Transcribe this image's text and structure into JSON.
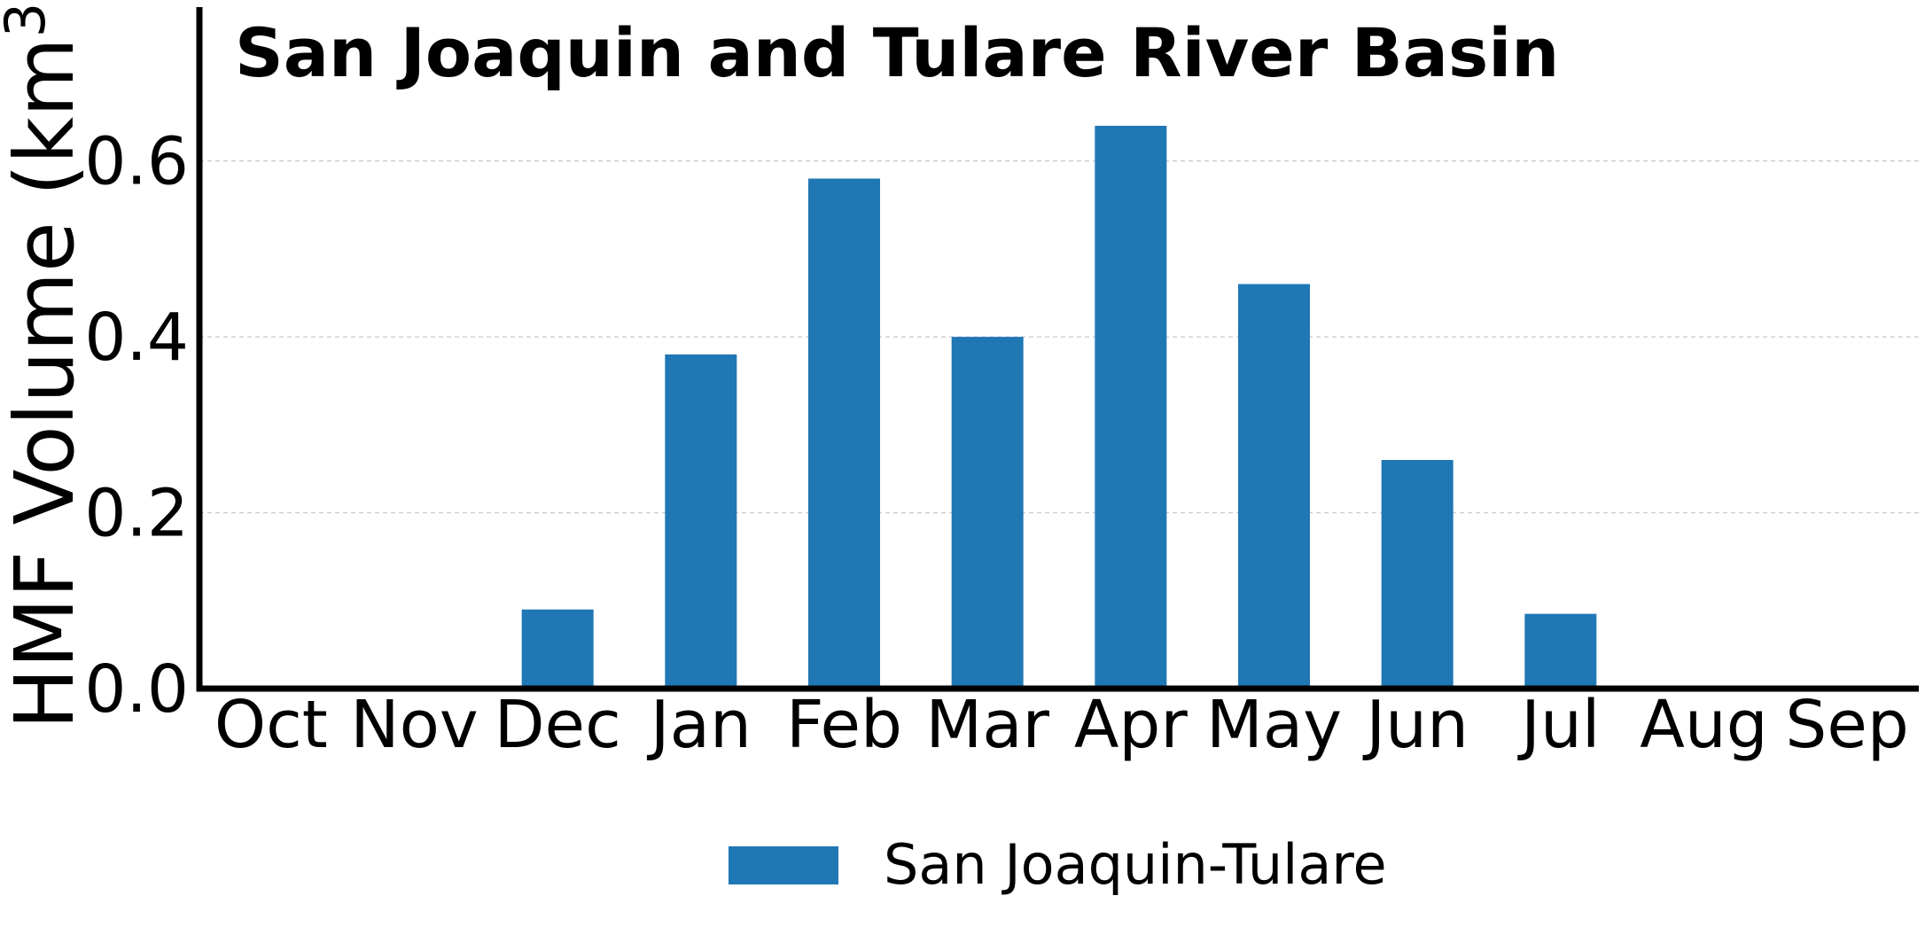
{
  "chart_data": {
    "type": "bar",
    "title": "San Joaquin and Tulare River Basin",
    "xlabel": "",
    "ylabel": "HMF Volume (km³)",
    "ylabel_main": "HMF Volume (km",
    "ylabel_sup": "3",
    "ylabel_close": ")",
    "categories": [
      "Oct",
      "Nov",
      "Dec",
      "Jan",
      "Feb",
      "Mar",
      "Apr",
      "May",
      "Jun",
      "Jul",
      "Aug",
      "Sep"
    ],
    "series": [
      {
        "name": "San Joaquin-Tulare",
        "color": "#1f77b4",
        "values": [
          0.0,
          0.0,
          0.09,
          0.38,
          0.58,
          0.4,
          0.64,
          0.46,
          0.26,
          0.085,
          0.0,
          0.0
        ]
      }
    ],
    "ylim": [
      0,
      0.775
    ],
    "yticks": [
      0.0,
      0.2,
      0.4,
      0.6
    ],
    "ytick_labels": [
      "0.0",
      "0.2",
      "0.4",
      "0.6"
    ],
    "grid": "horizontal dashed",
    "legend_position": "bottom-center"
  }
}
